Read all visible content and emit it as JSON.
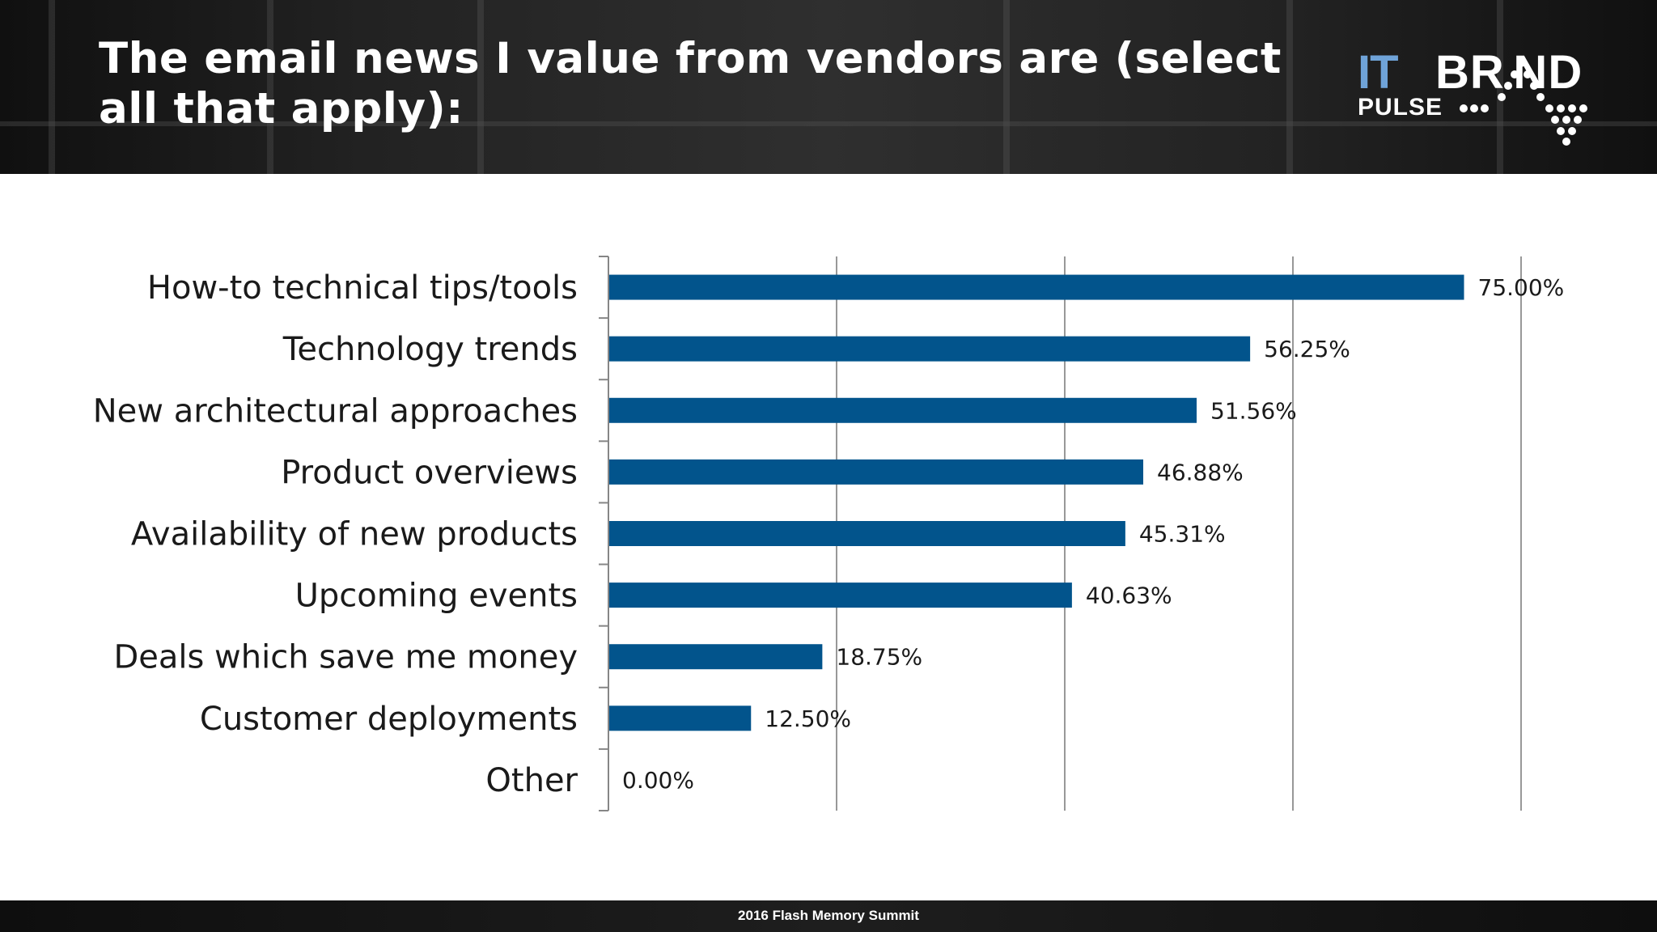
{
  "slide": {
    "title": "The email news I value from vendors are (select all that apply):",
    "footer": "2016 Flash Memory Summit"
  },
  "logo": {
    "it": "IT",
    "brand": "BR ND",
    "pulse": "PULSE"
  },
  "colors": {
    "bar": "#02548c",
    "axis": "#868686",
    "gridline": "#7f7f7f",
    "label_text": "#1a1a1a"
  },
  "chart_data": {
    "type": "bar",
    "orientation": "horizontal",
    "categories": [
      "How-to technical tips/tools",
      "Technology trends",
      "New architectural approaches",
      "Product overviews",
      "Availability of new products",
      "Upcoming events",
      "Deals which save me money",
      "Customer deployments",
      "Other"
    ],
    "values": [
      75.0,
      56.25,
      51.56,
      46.88,
      45.31,
      40.63,
      18.75,
      12.5,
      0.0
    ],
    "data_labels": [
      "75.00%",
      "56.25%",
      "51.56%",
      "46.88%",
      "45.31%",
      "40.63%",
      "18.75%",
      "12.50%",
      "0.00%"
    ],
    "unit": "%",
    "xlim": [
      0,
      80
    ],
    "gridline_values": [
      20,
      40,
      60,
      80
    ],
    "tick_labels_shown": false,
    "grid": true,
    "legend": "none"
  }
}
